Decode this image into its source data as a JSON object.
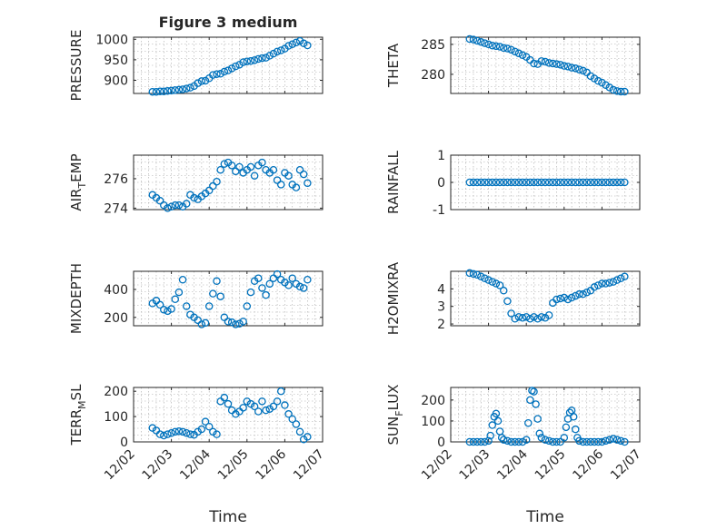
{
  "figure": {
    "title": "Figure 3 medium",
    "marker_color": "#0072BD",
    "xtick_labels": [
      "12/02",
      "12/03",
      "12/04",
      "12/05",
      "12/06",
      "12/07"
    ]
  },
  "chart_data": [
    {
      "type": "scatter",
      "panel": "pressure",
      "title": "Figure 3 medium",
      "ylabel": "PRESSURE",
      "xlabel": "",
      "xlim": [
        0,
        5
      ],
      "ylim": [
        868,
        1005
      ],
      "yticks": [
        900,
        950,
        1000
      ],
      "ytick_labels": [
        "900",
        "950",
        "1000"
      ],
      "x": [
        0.5,
        0.6,
        0.7,
        0.8,
        0.9,
        1.0,
        1.1,
        1.2,
        1.3,
        1.4,
        1.5,
        1.6,
        1.7,
        1.8,
        1.9,
        2.0,
        2.1,
        2.2,
        2.3,
        2.4,
        2.5,
        2.6,
        2.7,
        2.8,
        2.9,
        3.0,
        3.1,
        3.2,
        3.3,
        3.4,
        3.5,
        3.6,
        3.7,
        3.8,
        3.9,
        4.0,
        4.1,
        4.2,
        4.3,
        4.4,
        4.5,
        4.6
      ],
      "y": [
        872,
        872,
        873,
        873,
        874,
        875,
        876,
        877,
        878,
        880,
        882,
        886,
        893,
        898,
        899,
        905,
        913,
        915,
        916,
        921,
        924,
        929,
        934,
        938,
        944,
        946,
        947,
        949,
        952,
        954,
        955,
        960,
        965,
        970,
        973,
        977,
        984,
        988,
        992,
        996,
        990,
        985
      ]
    },
    {
      "type": "scatter",
      "panel": "theta",
      "ylabel": "THETA",
      "xlabel": "",
      "xlim": [
        0,
        5
      ],
      "ylim": [
        276.8,
        286.2
      ],
      "yticks": [
        280,
        285
      ],
      "ytick_labels": [
        "280",
        "285"
      ],
      "x": [
        0.5,
        0.6,
        0.7,
        0.8,
        0.9,
        1.0,
        1.1,
        1.2,
        1.3,
        1.4,
        1.5,
        1.6,
        1.7,
        1.8,
        1.9,
        2.0,
        2.1,
        2.2,
        2.3,
        2.4,
        2.5,
        2.6,
        2.7,
        2.8,
        2.9,
        3.0,
        3.1,
        3.2,
        3.3,
        3.4,
        3.5,
        3.6,
        3.7,
        3.8,
        3.9,
        4.0,
        4.1,
        4.2,
        4.3,
        4.4,
        4.5,
        4.6
      ],
      "y": [
        285.9,
        285.8,
        285.6,
        285.4,
        285.2,
        285.0,
        284.8,
        284.7,
        284.6,
        284.4,
        284.3,
        284.1,
        283.8,
        283.5,
        283.2,
        282.9,
        282.4,
        281.8,
        281.7,
        282.2,
        282.1,
        281.9,
        281.8,
        281.7,
        281.6,
        281.4,
        281.3,
        281.1,
        281.0,
        280.8,
        280.6,
        280.3,
        279.7,
        279.3,
        278.9,
        278.6,
        278.2,
        277.8,
        277.4,
        277.2,
        277.1,
        277.1
      ]
    },
    {
      "type": "scatter",
      "panel": "airtemp",
      "ylabel": "AIR",
      "ylabel_sub": "T",
      "ylabel_rest": "EMP",
      "xlabel": "",
      "xlim": [
        0,
        5
      ],
      "ylim": [
        273.9,
        277.6
      ],
      "yticks": [
        274,
        276
      ],
      "ytick_labels": [
        "274",
        "276"
      ],
      "x": [
        0.5,
        0.6,
        0.7,
        0.8,
        0.9,
        1.0,
        1.1,
        1.2,
        1.3,
        1.4,
        1.5,
        1.6,
        1.7,
        1.8,
        1.9,
        2.0,
        2.1,
        2.2,
        2.3,
        2.4,
        2.5,
        2.6,
        2.7,
        2.8,
        2.9,
        3.0,
        3.1,
        3.2,
        3.3,
        3.4,
        3.5,
        3.6,
        3.7,
        3.8,
        3.9,
        4.0,
        4.1,
        4.2,
        4.3,
        4.4,
        4.5,
        4.6
      ],
      "y": [
        274.9,
        274.7,
        274.5,
        274.2,
        274.0,
        274.1,
        274.2,
        274.2,
        274.1,
        274.3,
        274.9,
        274.7,
        274.6,
        274.8,
        275.0,
        275.2,
        275.5,
        275.8,
        276.6,
        277.0,
        277.1,
        276.9,
        276.5,
        276.8,
        276.4,
        276.6,
        276.8,
        276.2,
        276.9,
        277.1,
        276.6,
        276.4,
        276.6,
        275.9,
        275.6,
        276.4,
        276.2,
        275.6,
        275.4,
        276.6,
        276.3,
        275.7
      ]
    },
    {
      "type": "scatter",
      "panel": "rainfall",
      "ylabel": "RAINFALL",
      "xlabel": "",
      "xlim": [
        0,
        5
      ],
      "ylim": [
        -1,
        1
      ],
      "yticks": [
        -1,
        0,
        1
      ],
      "ytick_labels": [
        "-1",
        "0",
        "1"
      ],
      "x": [
        0.5,
        0.6,
        0.7,
        0.8,
        0.9,
        1.0,
        1.1,
        1.2,
        1.3,
        1.4,
        1.5,
        1.6,
        1.7,
        1.8,
        1.9,
        2.0,
        2.1,
        2.2,
        2.3,
        2.4,
        2.5,
        2.6,
        2.7,
        2.8,
        2.9,
        3.0,
        3.1,
        3.2,
        3.3,
        3.4,
        3.5,
        3.6,
        3.7,
        3.8,
        3.9,
        4.0,
        4.1,
        4.2,
        4.3,
        4.4,
        4.5,
        4.6
      ],
      "y": [
        0,
        0,
        0,
        0,
        0,
        0,
        0,
        0,
        0,
        0,
        0,
        0,
        0,
        0,
        0,
        0,
        0,
        0,
        0,
        0,
        0,
        0,
        0,
        0,
        0,
        0,
        0,
        0,
        0,
        0,
        0,
        0,
        0,
        0,
        0,
        0,
        0,
        0,
        0,
        0,
        0,
        0
      ]
    },
    {
      "type": "scatter",
      "panel": "mixdepth",
      "ylabel": "MIXDEPTH",
      "xlabel": "",
      "xlim": [
        0,
        5
      ],
      "ylim": [
        140,
        530
      ],
      "yticks": [
        200,
        400
      ],
      "ytick_labels": [
        "200",
        "400"
      ],
      "x": [
        0.5,
        0.6,
        0.7,
        0.8,
        0.9,
        1.0,
        1.1,
        1.2,
        1.3,
        1.4,
        1.5,
        1.6,
        1.7,
        1.8,
        1.9,
        2.0,
        2.1,
        2.2,
        2.3,
        2.4,
        2.5,
        2.6,
        2.7,
        2.8,
        2.9,
        3.0,
        3.1,
        3.2,
        3.3,
        3.4,
        3.5,
        3.6,
        3.7,
        3.8,
        3.9,
        4.0,
        4.1,
        4.2,
        4.3,
        4.4,
        4.5,
        4.6
      ],
      "y": [
        300,
        320,
        290,
        255,
        245,
        260,
        330,
        380,
        470,
        280,
        220,
        200,
        180,
        150,
        160,
        280,
        370,
        460,
        350,
        200,
        170,
        165,
        150,
        155,
        170,
        280,
        380,
        460,
        480,
        410,
        360,
        440,
        480,
        510,
        470,
        450,
        430,
        480,
        440,
        420,
        410,
        470
      ]
    },
    {
      "type": "scatter",
      "panel": "h2omixra",
      "ylabel": "H2OMIXRA",
      "xlabel": "",
      "xlim": [
        0,
        5
      ],
      "ylim": [
        1.9,
        5.0
      ],
      "yticks": [
        2,
        3,
        4
      ],
      "ytick_labels": [
        "2",
        "3",
        "4"
      ],
      "x": [
        0.5,
        0.6,
        0.7,
        0.8,
        0.9,
        1.0,
        1.1,
        1.2,
        1.3,
        1.4,
        1.5,
        1.6,
        1.7,
        1.8,
        1.9,
        2.0,
        2.1,
        2.2,
        2.3,
        2.4,
        2.5,
        2.6,
        2.7,
        2.8,
        2.9,
        3.0,
        3.1,
        3.2,
        3.3,
        3.4,
        3.5,
        3.6,
        3.7,
        3.8,
        3.9,
        4.0,
        4.1,
        4.2,
        4.3,
        4.4,
        4.5,
        4.6
      ],
      "y": [
        4.9,
        4.85,
        4.8,
        4.7,
        4.6,
        4.5,
        4.4,
        4.3,
        4.2,
        3.9,
        3.3,
        2.6,
        2.3,
        2.4,
        2.35,
        2.4,
        2.3,
        2.4,
        2.3,
        2.4,
        2.35,
        2.5,
        3.2,
        3.4,
        3.45,
        3.5,
        3.4,
        3.5,
        3.6,
        3.7,
        3.7,
        3.8,
        3.9,
        4.1,
        4.2,
        4.3,
        4.3,
        4.35,
        4.4,
        4.5,
        4.6,
        4.7
      ]
    },
    {
      "type": "scatter",
      "panel": "terrmsl",
      "ylabel": "TERR",
      "ylabel_sub": "M",
      "ylabel_rest": "SL",
      "xlabel": "Time",
      "xlim": [
        0,
        5
      ],
      "ylim": [
        0,
        215
      ],
      "yticks": [
        0,
        100,
        200
      ],
      "ytick_labels": [
        "0",
        "100",
        "200"
      ],
      "x": [
        0.5,
        0.6,
        0.7,
        0.8,
        0.9,
        1.0,
        1.1,
        1.2,
        1.3,
        1.4,
        1.5,
        1.6,
        1.7,
        1.8,
        1.9,
        2.0,
        2.1,
        2.2,
        2.3,
        2.4,
        2.5,
        2.6,
        2.7,
        2.8,
        2.9,
        3.0,
        3.1,
        3.2,
        3.3,
        3.4,
        3.5,
        3.6,
        3.7,
        3.8,
        3.9,
        4.0,
        4.1,
        4.2,
        4.3,
        4.4,
        4.5,
        4.6
      ],
      "y": [
        55,
        45,
        30,
        25,
        30,
        35,
        40,
        42,
        40,
        35,
        30,
        28,
        40,
        50,
        80,
        60,
        40,
        30,
        160,
        175,
        150,
        125,
        110,
        120,
        135,
        160,
        150,
        140,
        120,
        160,
        125,
        130,
        140,
        160,
        200,
        145,
        110,
        90,
        70,
        40,
        10,
        20
      ]
    },
    {
      "type": "scatter",
      "panel": "sunflux",
      "ylabel": "SUN",
      "ylabel_sub": "F",
      "ylabel_rest": "LUX",
      "xlabel": "Time",
      "xlim": [
        0,
        5
      ],
      "ylim": [
        0,
        260
      ],
      "yticks": [
        0,
        100,
        200
      ],
      "ytick_labels": [
        "0",
        "100",
        "200"
      ],
      "x": [
        0.5,
        0.6,
        0.7,
        0.8,
        0.9,
        1.0,
        1.05,
        1.1,
        1.15,
        1.2,
        1.25,
        1.3,
        1.35,
        1.4,
        1.5,
        1.6,
        1.7,
        1.8,
        1.9,
        2.0,
        2.05,
        2.1,
        2.15,
        2.2,
        2.25,
        2.3,
        2.35,
        2.4,
        2.5,
        2.6,
        2.7,
        2.8,
        2.9,
        3.0,
        3.05,
        3.1,
        3.15,
        3.2,
        3.25,
        3.3,
        3.35,
        3.4,
        3.5,
        3.6,
        3.7,
        3.8,
        3.9,
        4.0,
        4.1,
        4.2,
        4.3,
        4.4,
        4.5,
        4.6
      ],
      "y": [
        0,
        0,
        0,
        0,
        0,
        5,
        30,
        80,
        120,
        135,
        100,
        50,
        20,
        10,
        5,
        0,
        0,
        0,
        0,
        10,
        90,
        200,
        245,
        240,
        180,
        110,
        40,
        20,
        10,
        5,
        0,
        0,
        0,
        20,
        70,
        110,
        140,
        150,
        120,
        60,
        20,
        5,
        0,
        0,
        0,
        0,
        0,
        0,
        5,
        10,
        15,
        10,
        5,
        0
      ]
    }
  ]
}
